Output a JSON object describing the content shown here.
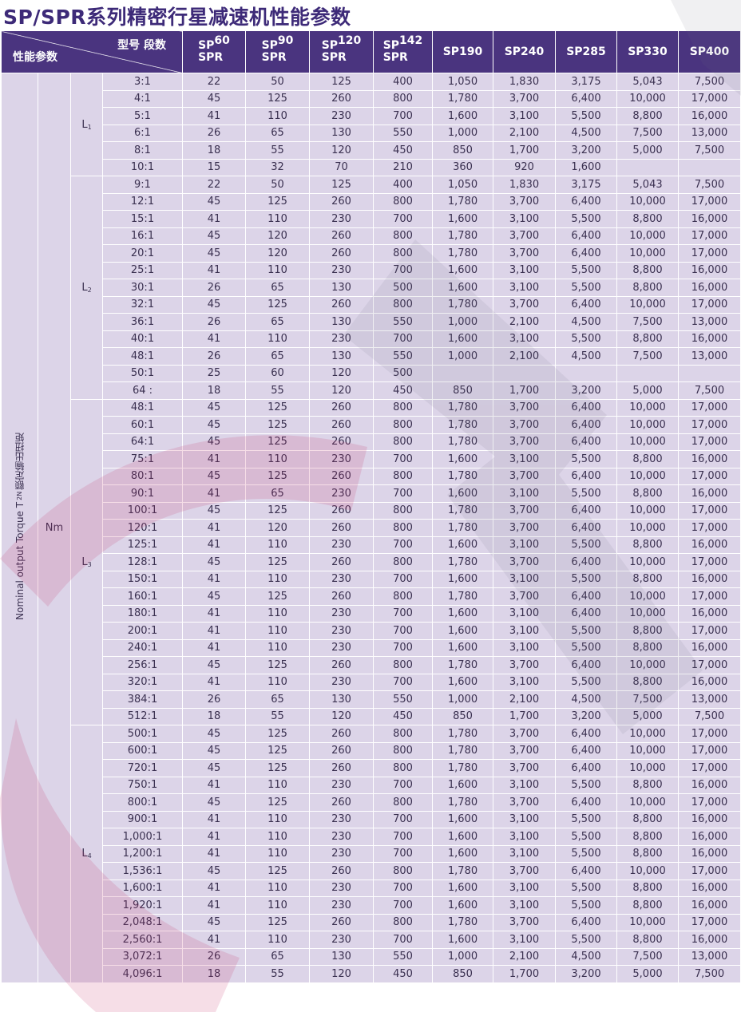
{
  "title": "SP/SPR系列精密行星减速机性能参数",
  "header": {
    "corner_top": "型号 段数",
    "corner_bottom": "性能参数",
    "models": [
      {
        "line1": "SP",
        "line2": "SPR",
        "size": "60"
      },
      {
        "line1": "SP",
        "line2": "SPR",
        "size": "90"
      },
      {
        "line1": "SP",
        "line2": "SPR",
        "size": "120"
      },
      {
        "line1": "SP",
        "line2": "SPR",
        "size": "142"
      },
      {
        "label": "SP190"
      },
      {
        "label": "SP240"
      },
      {
        "label": "SP285"
      },
      {
        "label": "SP330"
      },
      {
        "label": "SP400"
      }
    ]
  },
  "parameter": {
    "label": "Nominal output Torque T",
    "sub": "2N",
    "cn": " 额定输出扭矩",
    "unit": "Nm"
  },
  "colors": {
    "header": "#4a347f",
    "cell": "#dcd4e8",
    "title": "#3d2a78",
    "watermark": "#c7326b"
  },
  "stages": [
    {
      "label": "L",
      "sub": "1",
      "rows": [
        [
          "3:1",
          "22",
          "50",
          "125",
          "400",
          "1,050",
          "1,830",
          "3,175",
          "5,043",
          "7,500"
        ],
        [
          "4:1",
          "45",
          "125",
          "260",
          "800",
          "1,780",
          "3,700",
          "6,400",
          "10,000",
          "17,000"
        ],
        [
          "5:1",
          "41",
          "110",
          "230",
          "700",
          "1,600",
          "3,100",
          "5,500",
          "8,800",
          "16,000"
        ],
        [
          "6:1",
          "26",
          "65",
          "130",
          "550",
          "1,000",
          "2,100",
          "4,500",
          "7,500",
          "13,000"
        ],
        [
          "8:1",
          "18",
          "55",
          "120",
          "450",
          "850",
          "1,700",
          "3,200",
          "5,000",
          "7,500"
        ],
        [
          "10:1",
          "15",
          "32",
          "70",
          "210",
          "360",
          "920",
          "1,600",
          "",
          ""
        ]
      ]
    },
    {
      "label": "L",
      "sub": "2",
      "rows": [
        [
          "9:1",
          "22",
          "50",
          "125",
          "400",
          "1,050",
          "1,830",
          "3,175",
          "5,043",
          "7,500"
        ],
        [
          "12:1",
          "45",
          "125",
          "260",
          "800",
          "1,780",
          "3,700",
          "6,400",
          "10,000",
          "17,000"
        ],
        [
          "15:1",
          "41",
          "110",
          "230",
          "700",
          "1,600",
          "3,100",
          "5,500",
          "8,800",
          "16,000"
        ],
        [
          "16:1",
          "45",
          "120",
          "260",
          "800",
          "1,780",
          "3,700",
          "6,400",
          "10,000",
          "17,000"
        ],
        [
          "20:1",
          "45",
          "120",
          "260",
          "800",
          "1,780",
          "3,700",
          "6,400",
          "10,000",
          "17,000"
        ],
        [
          "25:1",
          "41",
          "110",
          "230",
          "700",
          "1,600",
          "3,100",
          "5,500",
          "8,800",
          "16,000"
        ],
        [
          "30:1",
          "26",
          "65",
          "130",
          "500",
          "1,600",
          "3,100",
          "5,500",
          "8,800",
          "16,000"
        ],
        [
          "32:1",
          "45",
          "125",
          "260",
          "800",
          "1,780",
          "3,700",
          "6,400",
          "10,000",
          "17,000"
        ],
        [
          "36:1",
          "26",
          "65",
          "130",
          "550",
          "1,000",
          "2,100",
          "4,500",
          "7,500",
          "13,000"
        ],
        [
          "40:1",
          "41",
          "110",
          "230",
          "700",
          "1,600",
          "3,100",
          "5,500",
          "8,800",
          "16,000"
        ],
        [
          "48:1",
          "26",
          "65",
          "130",
          "550",
          "1,000",
          "2,100",
          "4,500",
          "7,500",
          "13,000"
        ],
        [
          "50:1",
          "25",
          "60",
          "120",
          "500",
          "",
          "",
          "",
          "",
          ""
        ],
        [
          "64 :",
          "18",
          "55",
          "120",
          "450",
          "850",
          "1,700",
          "3,200",
          "5,000",
          "7,500"
        ]
      ]
    },
    {
      "label": "L",
      "sub": "3",
      "rows": [
        [
          "48:1",
          "45",
          "125",
          "260",
          "800",
          "1,780",
          "3,700",
          "6,400",
          "10,000",
          "17,000"
        ],
        [
          "60:1",
          "45",
          "125",
          "260",
          "800",
          "1,780",
          "3,700",
          "6,400",
          "10,000",
          "17,000"
        ],
        [
          "64:1",
          "45",
          "125",
          "260",
          "800",
          "1,780",
          "3,700",
          "6,400",
          "10,000",
          "17,000"
        ],
        [
          "75:1",
          "41",
          "110",
          "230",
          "700",
          "1,600",
          "3,100",
          "5,500",
          "8,800",
          "16,000"
        ],
        [
          "80:1",
          "45",
          "125",
          "260",
          "800",
          "1,780",
          "3,700",
          "6,400",
          "10,000",
          "17,000"
        ],
        [
          "90:1",
          "41",
          "65",
          "230",
          "700",
          "1,600",
          "3,100",
          "5,500",
          "8,800",
          "16,000"
        ],
        [
          "100:1",
          "45",
          "125",
          "260",
          "800",
          "1,780",
          "3,700",
          "6,400",
          "10,000",
          "17,000"
        ],
        [
          "120:1",
          "41",
          "120",
          "260",
          "800",
          "1,780",
          "3,700",
          "6,400",
          "10,000",
          "17,000"
        ],
        [
          "125:1",
          "41",
          "110",
          "230",
          "700",
          "1,600",
          "3,100",
          "5,500",
          "8,800",
          "16,000"
        ],
        [
          "128:1",
          "45",
          "125",
          "260",
          "800",
          "1,780",
          "3,700",
          "6,400",
          "10,000",
          "17,000"
        ],
        [
          "150:1",
          "41",
          "110",
          "230",
          "700",
          "1,600",
          "3,100",
          "5,500",
          "8,800",
          "16,000"
        ],
        [
          "160:1",
          "45",
          "125",
          "260",
          "800",
          "1,780",
          "3,700",
          "6,400",
          "10,000",
          "17,000"
        ],
        [
          "180:1",
          "41",
          "110",
          "230",
          "700",
          "1,600",
          "3,100",
          "6,400",
          "10,000",
          "16,000"
        ],
        [
          "200:1",
          "41",
          "110",
          "230",
          "700",
          "1,600",
          "3,100",
          "5,500",
          "8,800",
          "17,000"
        ],
        [
          "240:1",
          "41",
          "110",
          "230",
          "700",
          "1,600",
          "3,100",
          "5,500",
          "8,800",
          "16,000"
        ],
        [
          "256:1",
          "45",
          "125",
          "260",
          "800",
          "1,780",
          "3,700",
          "6,400",
          "10,000",
          "17,000"
        ],
        [
          "320:1",
          "41",
          "110",
          "230",
          "700",
          "1,600",
          "3,100",
          "5,500",
          "8,800",
          "16,000"
        ],
        [
          "384:1",
          "26",
          "65",
          "130",
          "550",
          "1,000",
          "2,100",
          "4,500",
          "7,500",
          "13,000"
        ],
        [
          "512:1",
          "18",
          "55",
          "120",
          "450",
          "850",
          "1,700",
          "3,200",
          "5,000",
          "7,500"
        ]
      ]
    },
    {
      "label": "L",
      "sub": "4",
      "rows": [
        [
          "500:1",
          "45",
          "125",
          "260",
          "800",
          "1,780",
          "3,700",
          "6,400",
          "10,000",
          "17,000"
        ],
        [
          "600:1",
          "45",
          "125",
          "260",
          "800",
          "1,780",
          "3,700",
          "6,400",
          "10,000",
          "17,000"
        ],
        [
          "720:1",
          "45",
          "125",
          "260",
          "800",
          "1,780",
          "3,700",
          "6,400",
          "10,000",
          "17,000"
        ],
        [
          "750:1",
          "41",
          "110",
          "230",
          "700",
          "1,600",
          "3,100",
          "5,500",
          "8,800",
          "16,000"
        ],
        [
          "800:1",
          "45",
          "125",
          "260",
          "800",
          "1,780",
          "3,700",
          "6,400",
          "10,000",
          "17,000"
        ],
        [
          "900:1",
          "41",
          "110",
          "230",
          "700",
          "1,600",
          "3,100",
          "5,500",
          "8,800",
          "16,000"
        ],
        [
          "1,000:1",
          "41",
          "110",
          "230",
          "700",
          "1,600",
          "3,100",
          "5,500",
          "8,800",
          "16,000"
        ],
        [
          "1,200:1",
          "41",
          "110",
          "230",
          "700",
          "1,600",
          "3,100",
          "5,500",
          "8,800",
          "16,000"
        ],
        [
          "1,536:1",
          "45",
          "125",
          "260",
          "800",
          "1,780",
          "3,700",
          "6,400",
          "10,000",
          "17,000"
        ],
        [
          "1,600:1",
          "41",
          "110",
          "230",
          "700",
          "1,600",
          "3,100",
          "5,500",
          "8,800",
          "16,000"
        ],
        [
          "1,920:1",
          "41",
          "110",
          "230",
          "700",
          "1,600",
          "3,100",
          "5,500",
          "8,800",
          "16,000"
        ],
        [
          "2,048:1",
          "45",
          "125",
          "260",
          "800",
          "1,780",
          "3,700",
          "6,400",
          "10,000",
          "17,000"
        ],
        [
          "2,560:1",
          "41",
          "110",
          "230",
          "700",
          "1,600",
          "3,100",
          "5,500",
          "8,800",
          "16,000"
        ],
        [
          "3,072:1",
          "26",
          "65",
          "130",
          "550",
          "1,000",
          "2,100",
          "4,500",
          "7,500",
          "13,000"
        ],
        [
          "4,096:1",
          "18",
          "55",
          "120",
          "450",
          "850",
          "1,700",
          "3,200",
          "5,000",
          "7,500"
        ]
      ]
    }
  ]
}
